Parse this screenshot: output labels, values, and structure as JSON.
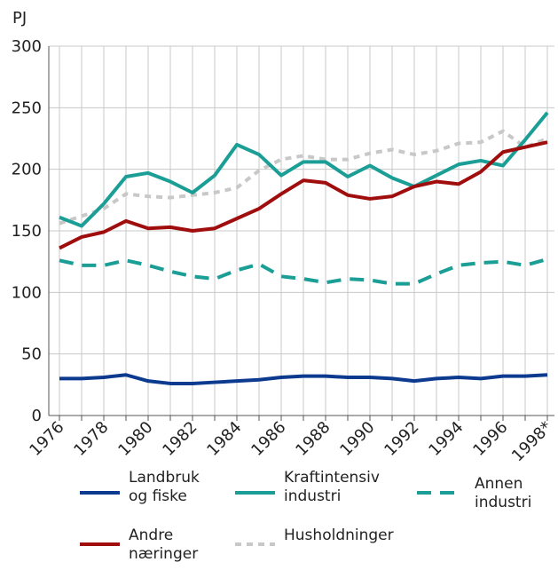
{
  "chart_data": {
    "type": "line",
    "ylabel": "PJ",
    "categories": [
      "1976",
      null,
      "1978",
      null,
      "1980",
      null,
      "1982",
      null,
      "1984",
      null,
      "1986",
      null,
      "1988",
      null,
      "1990",
      null,
      "1992",
      null,
      "1994",
      null,
      "1996",
      null,
      "1998*"
    ],
    "ylim": [
      0,
      300
    ],
    "yticks": [
      0,
      50,
      100,
      150,
      200,
      250,
      300
    ],
    "grid": true,
    "series": [
      {
        "name": "Landbruk og fiske",
        "color": "#0b3a8f",
        "style": "solid",
        "values": [
          30,
          30,
          31,
          33,
          28,
          26,
          26,
          27,
          28,
          29,
          31,
          32,
          32,
          31,
          31,
          30,
          28,
          30,
          31,
          30,
          32,
          32,
          33
        ]
      },
      {
        "name": "Kraftintensiv industri",
        "color": "#1a9e96",
        "style": "solid",
        "values": [
          161,
          154,
          172,
          194,
          197,
          190,
          181,
          195,
          220,
          212,
          195,
          206,
          206,
          194,
          203,
          193,
          186,
          195,
          204,
          207,
          203,
          224,
          246
        ]
      },
      {
        "name": "Annen industri",
        "color": "#1a9e96",
        "style": "dashed",
        "values": [
          126,
          122,
          122,
          126,
          122,
          117,
          113,
          111,
          118,
          123,
          113,
          111,
          108,
          111,
          110,
          107,
          107,
          115,
          122,
          124,
          125,
          122,
          127
        ]
      },
      {
        "name": "Andre næringer",
        "color": "#a00d0d",
        "style": "solid",
        "values": [
          136,
          145,
          149,
          158,
          152,
          153,
          150,
          152,
          160,
          168,
          180,
          191,
          189,
          179,
          176,
          178,
          186,
          190,
          188,
          198,
          214,
          218,
          222
        ]
      },
      {
        "name": "Husholdninger",
        "color": "#c8c8c8",
        "style": "dotted",
        "values": [
          156,
          162,
          168,
          180,
          178,
          177,
          179,
          181,
          185,
          199,
          208,
          211,
          208,
          208,
          213,
          216,
          212,
          215,
          221,
          222,
          231,
          218,
          225
        ]
      }
    ]
  }
}
